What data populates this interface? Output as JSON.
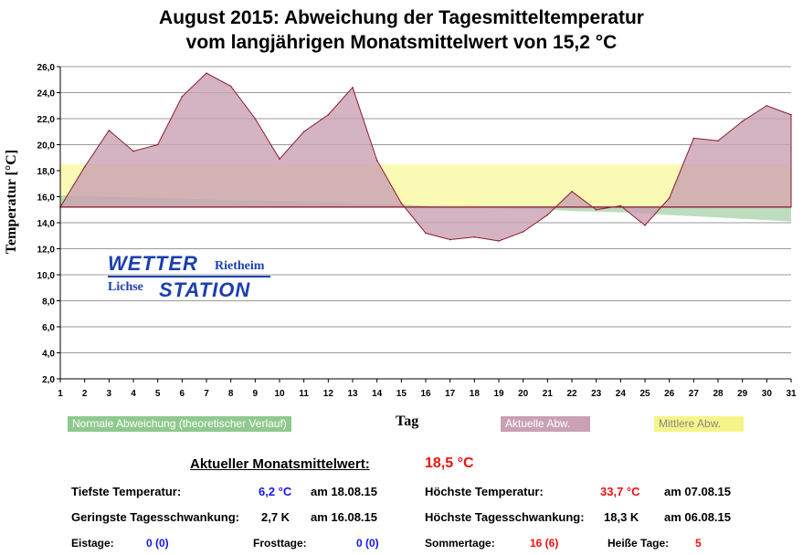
{
  "chart_data": {
    "type": "area",
    "title_line1": "August 2015: Abweichung der Tagesmitteltemperatur",
    "title_line2": "vom langjährigen Monatsmittelwert von 15,2 °C",
    "xlabel": "Tag",
    "ylabel": "Temperatur [°C]",
    "ylim": [
      2,
      26
    ],
    "yticks": [
      "2,0",
      "4,0",
      "6,0",
      "8,0",
      "10,0",
      "12,0",
      "14,0",
      "16,0",
      "18,0",
      "20,0",
      "22,0",
      "24,0",
      "26,0"
    ],
    "ytick_values": [
      2,
      4,
      6,
      8,
      10,
      12,
      14,
      16,
      18,
      20,
      22,
      24,
      26
    ],
    "x": [
      1,
      2,
      3,
      4,
      5,
      6,
      7,
      8,
      9,
      10,
      11,
      12,
      13,
      14,
      15,
      16,
      17,
      18,
      19,
      20,
      21,
      22,
      23,
      24,
      25,
      26,
      27,
      28,
      29,
      30,
      31
    ],
    "baseline": 15.2,
    "mean_band": [
      15.2,
      18.5
    ],
    "series": [
      {
        "name": "Aktuelle Abw.",
        "color": "#c9a0b4",
        "values": [
          15.2,
          18.3,
          21.1,
          19.5,
          20.0,
          23.7,
          25.5,
          24.5,
          22.0,
          18.9,
          21.0,
          22.3,
          24.4,
          18.8,
          15.5,
          13.2,
          12.7,
          12.9,
          12.6,
          13.3,
          14.6,
          16.4,
          15.0,
          15.3,
          13.8,
          15.9,
          20.5,
          20.3,
          21.8,
          23.0,
          22.3
        ]
      },
      {
        "name": "Normale Abweichung (theoretischer Verlauf)",
        "color": "#a8d0a8",
        "values": [
          16.1,
          16.05,
          16.0,
          15.95,
          15.9,
          15.85,
          15.8,
          15.75,
          15.7,
          15.65,
          15.6,
          15.55,
          15.5,
          15.45,
          15.4,
          15.3,
          15.2,
          15.15,
          15.1,
          15.05,
          15.0,
          14.9,
          14.85,
          14.8,
          14.7,
          14.6,
          14.5,
          14.4,
          14.3,
          14.2,
          14.1
        ]
      }
    ],
    "legend": {
      "normal": "Normale Abweichung (theoretischer Verlauf)",
      "actual": "Aktuelle Abw.",
      "mean": "Mittlere Abw."
    },
    "colors": {
      "actual_fill": "#c9a0b4",
      "actual_line": "#8b1a2b",
      "normal_fill": "#a8d0a8",
      "mean_fill": "#fafab4",
      "legend_normal": "#8fc98f",
      "legend_actual": "#c9a0b4",
      "legend_mean": "#f5f58a"
    }
  },
  "logo": {
    "wetter": "WETTER",
    "rietheim": "Rietheim",
    "lichse": "Lichse",
    "station": "STATION"
  },
  "stats": {
    "mittel_label": "Aktueller Monatsmittelwert:",
    "mittel_value": "18,5 °C",
    "tief_label": "Tiefste Temperatur:",
    "tief_value": "6,2 °C",
    "tief_date": "am 18.08.15",
    "hoch_label": "Höchste Temperatur:",
    "hoch_value": "33,7 °C",
    "hoch_date": "am 07.08.15",
    "gering_label": "Geringste Tagesschwankung:",
    "gering_value": "2,7 K",
    "gering_date": "am 16.08.15",
    "hoechst_label": "Höchste Tagesschwankung:",
    "hoechst_value": "18,3 K",
    "hoechst_date": "am 06.08.15",
    "eis_label": "Eistage:",
    "eis_value": "0 (0)",
    "frost_label": "Frosttage:",
    "frost_value": "0 (0)",
    "sommer_label": "Sommertage:",
    "sommer_value": "16 (6)",
    "heiss_label": "Heiße Tage:",
    "heiss_value": "5"
  }
}
